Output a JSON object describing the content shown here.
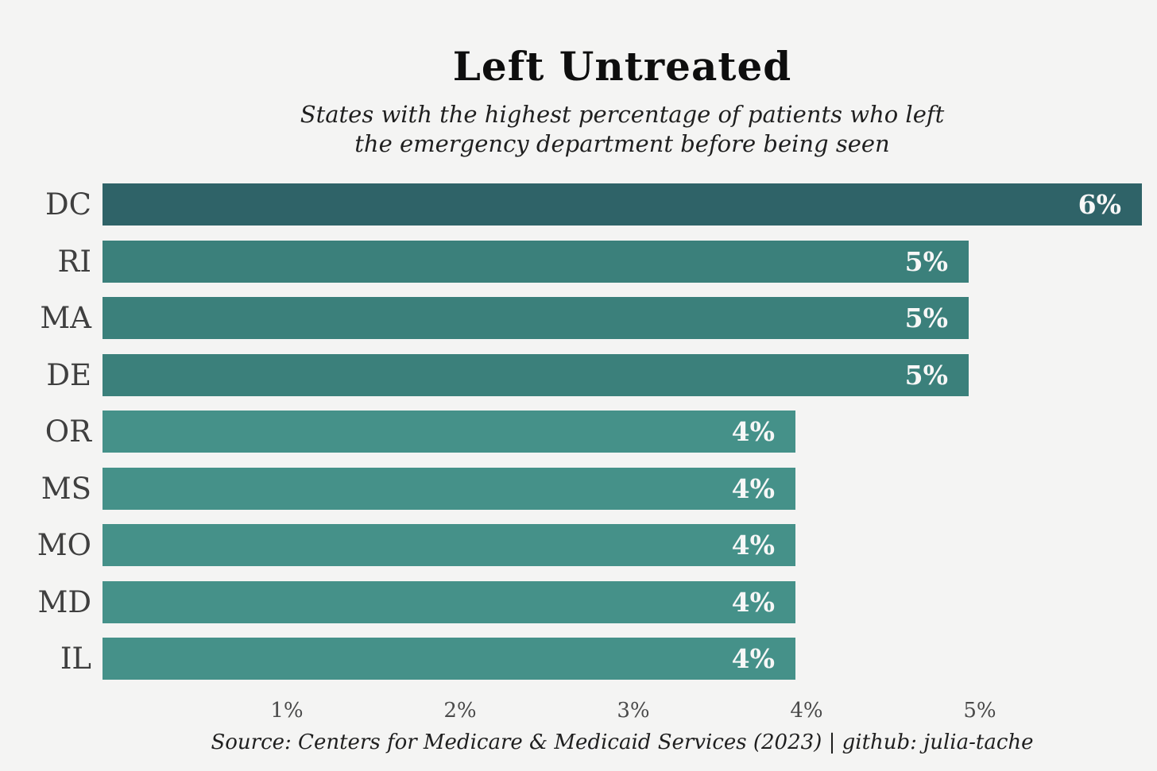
{
  "header": {
    "title": "Left Untreated",
    "subtitle_lines": [
      "States with the highest percentage of patients who left",
      "the emergency department before being seen"
    ]
  },
  "footer": {
    "source": "Source: Centers for Medicare & Medicaid Services (2023) | github: julia-tache"
  },
  "colors": {
    "background": "#f4f4f3",
    "title_text": "#0e0e0e",
    "subtitle_text": "#1f1f1f",
    "state_label_text": "#3f3f3f",
    "tick_label_text": "#4a4a4a",
    "value_label_text": "#f7f7f7",
    "bar_6_percent": "#2f6368",
    "bar_5_percent": "#3b807b",
    "bar_4_percent": "#459189"
  },
  "chart_data": {
    "type": "bar",
    "orientation": "horizontal",
    "title": "Left Untreated",
    "subtitle": "States with the highest percentage of patients who left the emergency department before being seen",
    "xlabel": "",
    "ylabel": "",
    "grid": false,
    "legend": false,
    "xlim": [
      0,
      6
    ],
    "categories": [
      "DC",
      "RI",
      "MA",
      "DE",
      "OR",
      "MS",
      "MO",
      "MD",
      "IL"
    ],
    "values": [
      6,
      5,
      5,
      5,
      4,
      4,
      4,
      4,
      4
    ],
    "value_labels": [
      "6%",
      "5%",
      "5%",
      "5%",
      "4%",
      "4%",
      "4%",
      "4%",
      "4%"
    ],
    "bar_colors": [
      "#2f6368",
      "#3b807b",
      "#3b807b",
      "#3b807b",
      "#459189",
      "#459189",
      "#459189",
      "#459189",
      "#459189"
    ],
    "x_ticks": [
      {
        "value": 1,
        "label": "1%"
      },
      {
        "value": 2,
        "label": "2%"
      },
      {
        "value": 3,
        "label": "3%"
      },
      {
        "value": 4,
        "label": "4%"
      },
      {
        "value": 5,
        "label": "5%"
      }
    ],
    "source": "Source: Centers for Medicare & Medicaid Services (2023) | github: julia-tache"
  }
}
